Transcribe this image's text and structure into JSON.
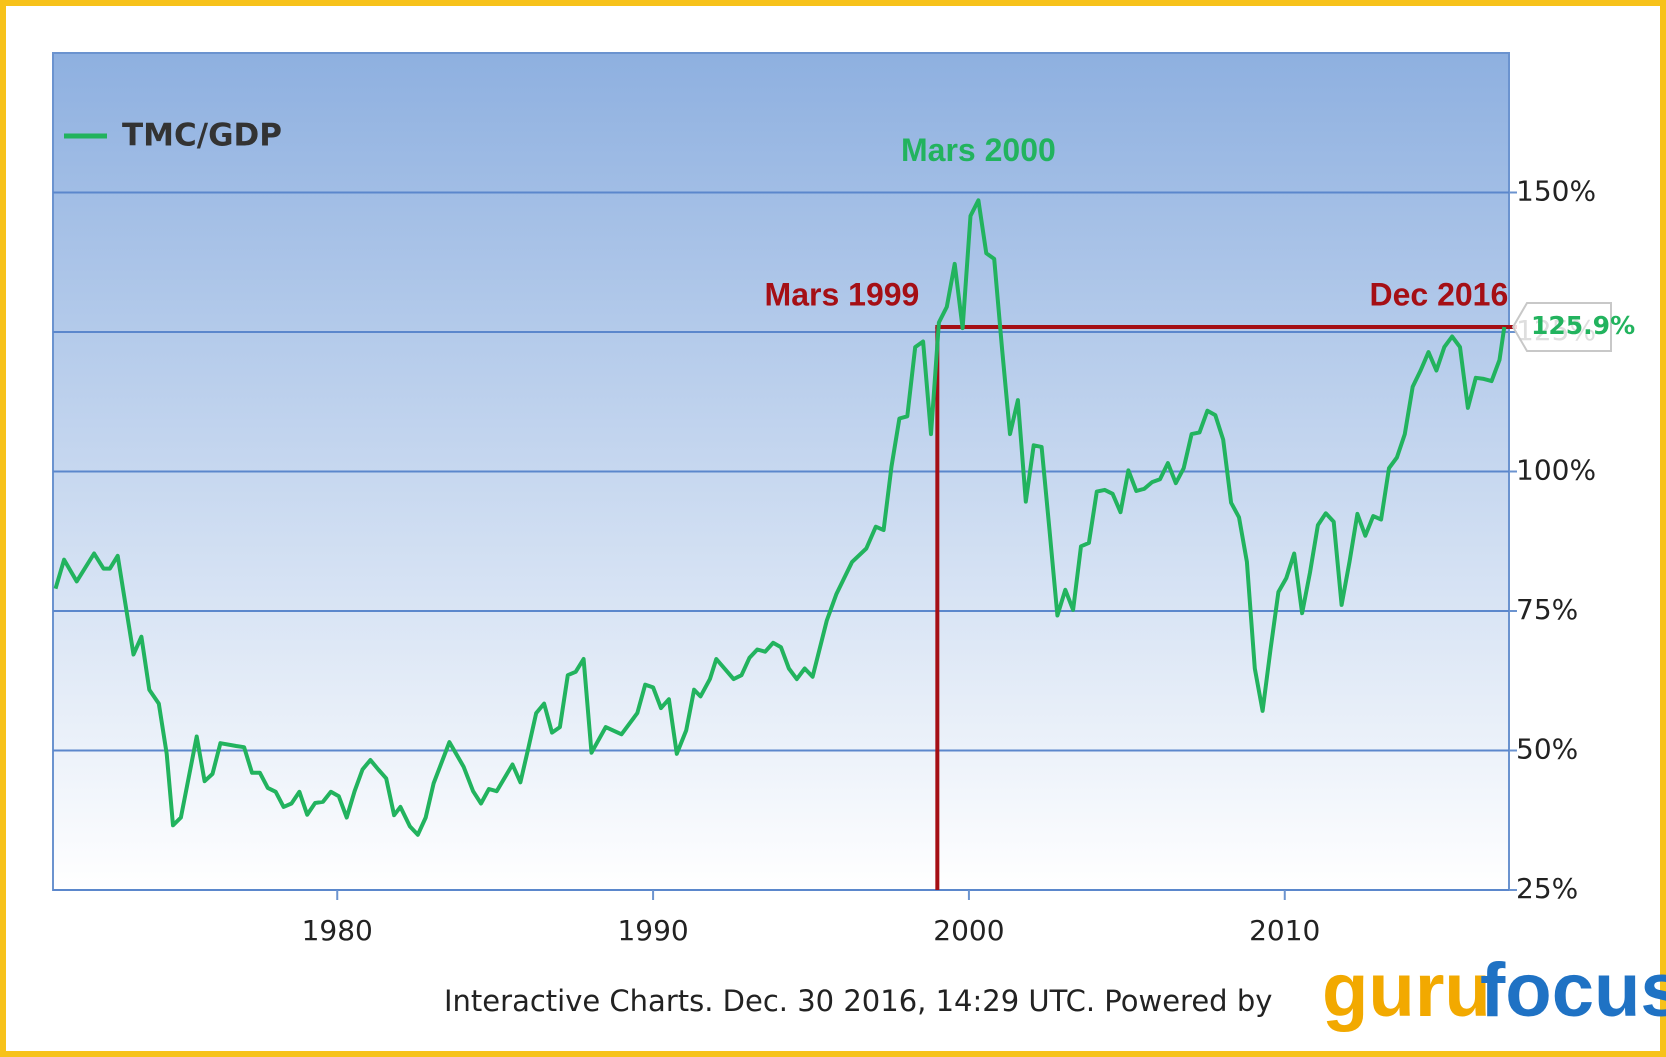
{
  "chart_data": {
    "type": "line",
    "series": [
      {
        "name": "TMC/GDP",
        "color": "#22b35e",
        "x": [
          1971.08,
          1971.35,
          1971.75,
          1972.3,
          1972.6,
          1972.8,
          1973.05,
          1973.55,
          1973.8,
          1974.05,
          1974.35,
          1974.6,
          1974.8,
          1975.05,
          1975.55,
          1975.8,
          1976.05,
          1976.3,
          1976.8,
          1977.05,
          1977.3,
          1977.55,
          1977.8,
          1978.05,
          1978.3,
          1978.55,
          1978.8,
          1979.05,
          1979.3,
          1979.55,
          1979.8,
          1980.05,
          1980.3,
          1980.55,
          1980.8,
          1981.05,
          1981.3,
          1981.55,
          1981.8,
          1982.0,
          1982.3,
          1982.55,
          1982.8,
          1983.05,
          1983.55,
          1984.0,
          1984.3,
          1984.55,
          1984.8,
          1985.05,
          1985.55,
          1985.8,
          1986.05,
          1986.3,
          1986.55,
          1986.8,
          1987.05,
          1987.3,
          1987.55,
          1987.8,
          1988.05,
          1988.5,
          1989.0,
          1989.5,
          1989.75,
          1990.0,
          1990.25,
          1990.5,
          1990.75,
          1991.05,
          1991.3,
          1991.5,
          1991.8,
          1992.0,
          1992.55,
          1992.8,
          1993.05,
          1993.3,
          1993.55,
          1993.8,
          1994.05,
          1994.3,
          1994.55,
          1994.8,
          1995.05,
          1995.5,
          1995.8,
          1996.3,
          1996.75,
          1997.05,
          1997.3,
          1997.55,
          1997.8,
          1998.05,
          1998.3,
          1998.55,
          1998.8,
          1999.05,
          1999.3,
          1999.55,
          1999.8,
          2000.05,
          2000.3,
          2000.55,
          2000.8,
          2001.05,
          2001.3,
          2001.55,
          2001.8,
          2002.05,
          2002.3,
          2002.55,
          2002.8,
          2003.05,
          2003.3,
          2003.55,
          2003.8,
          2004.05,
          2004.3,
          2004.55,
          2004.8,
          2005.05,
          2005.3,
          2005.55,
          2005.8,
          2006.05,
          2006.3,
          2006.55,
          2006.8,
          2007.05,
          2007.3,
          2007.55,
          2007.8,
          2008.05,
          2008.3,
          2008.55,
          2008.8,
          2009.05,
          2009.3,
          2009.55,
          2009.8,
          2010.05,
          2010.3,
          2010.55,
          2010.8,
          2011.05,
          2011.3,
          2011.55,
          2011.8,
          2012.05,
          2012.3,
          2012.55,
          2012.8,
          2013.05,
          2013.3,
          2013.55,
          2013.8,
          2014.05,
          2014.3,
          2014.55,
          2014.8,
          2015.05,
          2015.3,
          2015.55,
          2015.8,
          2016.05,
          2016.3,
          2016.55,
          2016.8,
          2016.95
        ],
        "values": [
          79.0,
          84.2,
          80.3,
          85.3,
          82.6,
          82.6,
          84.9,
          67.2,
          70.4,
          60.9,
          58.4,
          49.4,
          36.6,
          38.0,
          52.5,
          44.5,
          45.8,
          51.3,
          50.8,
          50.6,
          46.0,
          46.0,
          43.3,
          42.6,
          39.9,
          40.5,
          42.6,
          38.5,
          40.6,
          40.8,
          42.6,
          41.8,
          38.0,
          42.7,
          46.6,
          48.3,
          46.6,
          45.0,
          38.4,
          39.9,
          36.4,
          34.9,
          38.0,
          44.1,
          51.5,
          47.1,
          42.7,
          40.5,
          43.1,
          42.7,
          47.5,
          44.3,
          50.4,
          56.7,
          58.4,
          53.2,
          54.2,
          63.5,
          64.1,
          66.4,
          49.6,
          54.2,
          52.9,
          56.7,
          61.8,
          61.3,
          57.6,
          59.2,
          49.4,
          53.6,
          60.9,
          59.7,
          62.8,
          66.4,
          62.8,
          63.5,
          66.6,
          68.1,
          67.7,
          69.3,
          68.5,
          64.7,
          62.8,
          64.7,
          63.2,
          73.3,
          78.0,
          83.8,
          86.2,
          90.1,
          89.5,
          100.9,
          109.5,
          109.9,
          122.3,
          123.3,
          106.7,
          126.7,
          129.5,
          137.2,
          125.7,
          145.8,
          148.6,
          139.1,
          138.1,
          121.9,
          106.7,
          112.8,
          94.6,
          104.7,
          104.4,
          89.5,
          74.2,
          78.8,
          75.2,
          86.6,
          87.2,
          96.4,
          96.7,
          96.0,
          92.7,
          100.2,
          96.5,
          96.9,
          98.1,
          98.6,
          101.5,
          97.9,
          100.6,
          106.7,
          107.0,
          110.9,
          110.1,
          105.7,
          94.4,
          91.8,
          83.8,
          64.7,
          57.1,
          68.1,
          78.4,
          80.9,
          85.3,
          74.6,
          81.9,
          90.4,
          92.5,
          91.0,
          76.1,
          83.8,
          92.4,
          88.5,
          92.0,
          91.4,
          100.6,
          102.5,
          106.7,
          115.2,
          118.1,
          121.4,
          118.1,
          122.3,
          124.2,
          122.3,
          111.4,
          116.8,
          116.6,
          116.2,
          120.0,
          125.9
        ],
        "last_label": "125.9%"
      }
    ],
    "xlim": [
      1971,
      2017.1
    ],
    "xticks": [
      1980,
      1990,
      2000,
      2010
    ],
    "ylim": [
      25,
      175
    ],
    "yticks": [
      {
        "value": 25,
        "label": "25%"
      },
      {
        "value": 50,
        "label": "50%"
      },
      {
        "value": 75,
        "label": "75%"
      },
      {
        "value": 100,
        "label": "100%"
      },
      {
        "value": 125,
        "label": "125%"
      },
      {
        "value": 150,
        "label": "150%"
      }
    ],
    "grid": true,
    "legend": "top-left",
    "annotations": [
      {
        "text": "Mars 1999",
        "x": 1999.0,
        "y": 125.9,
        "color": "#a50f15"
      },
      {
        "text": "Mars 2000",
        "x": 2000.3,
        "y": 148.6,
        "color": "#22b35e"
      },
      {
        "text": "Dec 2016",
        "x": 2016.95,
        "y": 125.9,
        "color": "#a50f15"
      }
    ],
    "footer": "Interactive Charts. Dec. 30 2016, 14:29 UTC. Powered by",
    "logo": {
      "part1": "guru",
      "part2": "focus"
    }
  }
}
